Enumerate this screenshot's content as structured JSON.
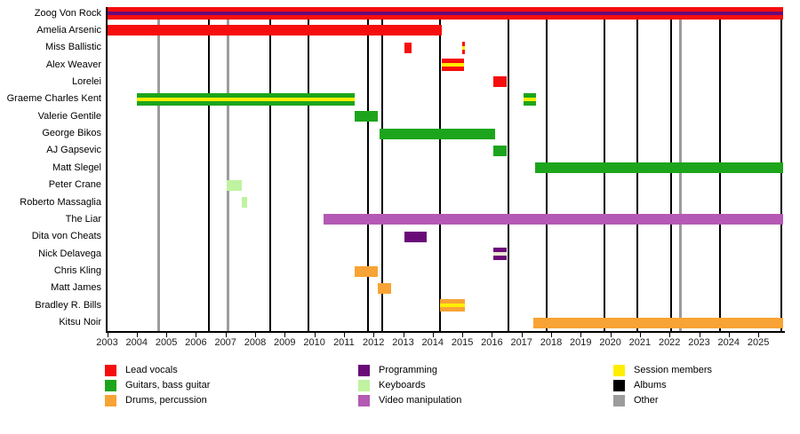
{
  "chart_data": {
    "type": "timeline-gantt",
    "title": "",
    "x_axis": {
      "start": 2003,
      "end": 2025.85,
      "ticks": [
        2003,
        2004,
        2005,
        2006,
        2007,
        2008,
        2009,
        2010,
        2011,
        2012,
        2013,
        2014,
        2015,
        2016,
        2017,
        2018,
        2019,
        2020,
        2021,
        2022,
        2023,
        2024,
        2025
      ]
    },
    "colors": {
      "lead_vocals": "#f60d0d",
      "guitars": "#1ca51c",
      "drums": "#f8a335",
      "programming": "#6a0a78",
      "keyboards": "#bff3a0",
      "keyboards_light": "#eae6d4",
      "video": "#b459b4",
      "session": "#ffee00",
      "albums": "#000000",
      "other": "#9c9c9c"
    },
    "members": [
      {
        "name": "Zoog Von Rock",
        "bars": [
          {
            "start": 2003.0,
            "end": 2025.85,
            "color": "lead_vocals",
            "stripe": "programming"
          }
        ]
      },
      {
        "name": "Amelia Arsenic",
        "bars": [
          {
            "start": 2003.0,
            "end": 2014.3,
            "color": "lead_vocals"
          }
        ]
      },
      {
        "name": "Miss Ballistic",
        "bars": [
          {
            "start": 2013.05,
            "end": 2013.3,
            "color": "lead_vocals"
          },
          {
            "start": 2015.0,
            "end": 2015.1,
            "color": "lead_vocals",
            "stripe": "session"
          }
        ]
      },
      {
        "name": "Alex Weaver",
        "bars": [
          {
            "start": 2014.3,
            "end": 2015.05,
            "color": "lead_vocals",
            "stripe": "session"
          }
        ]
      },
      {
        "name": "Lorelei",
        "bars": [
          {
            "start": 2016.05,
            "end": 2016.5,
            "color": "lead_vocals"
          }
        ]
      },
      {
        "name": "Graeme Charles Kent",
        "bars": [
          {
            "start": 2004.0,
            "end": 2011.35,
            "color": "guitars",
            "stripe": "session"
          },
          {
            "start": 2017.08,
            "end": 2017.5,
            "color": "guitars",
            "stripe": "session"
          }
        ]
      },
      {
        "name": "Valerie Gentile",
        "bars": [
          {
            "start": 2011.35,
            "end": 2012.15,
            "color": "guitars"
          }
        ]
      },
      {
        "name": "George Bikos",
        "bars": [
          {
            "start": 2012.2,
            "end": 2016.1,
            "color": "guitars"
          }
        ]
      },
      {
        "name": "AJ Gapsevic",
        "bars": [
          {
            "start": 2016.05,
            "end": 2016.5,
            "color": "guitars"
          }
        ]
      },
      {
        "name": "Matt Slegel",
        "bars": [
          {
            "start": 2017.45,
            "end": 2025.85,
            "color": "guitars"
          }
        ]
      },
      {
        "name": "Peter Crane",
        "bars": [
          {
            "start": 2007.05,
            "end": 2007.55,
            "color": "keyboards"
          }
        ]
      },
      {
        "name": "Roberto Massaglia",
        "bars": [
          {
            "start": 2007.55,
            "end": 2007.72,
            "color": "keyboards"
          }
        ]
      },
      {
        "name": "The Liar",
        "bars": [
          {
            "start": 2010.3,
            "end": 2025.85,
            "color": "video"
          }
        ]
      },
      {
        "name": "Dita von Cheats",
        "bars": [
          {
            "start": 2013.05,
            "end": 2013.8,
            "color": "programming"
          }
        ]
      },
      {
        "name": "Nick Delavega",
        "bars": [
          {
            "start": 2016.05,
            "end": 2016.5,
            "color": "programming",
            "stripe": "keyboards_light"
          }
        ]
      },
      {
        "name": "Chris Kling",
        "bars": [
          {
            "start": 2011.35,
            "end": 2012.15,
            "color": "drums"
          }
        ]
      },
      {
        "name": "Matt James",
        "bars": [
          {
            "start": 2012.15,
            "end": 2012.6,
            "color": "drums"
          }
        ]
      },
      {
        "name": "Bradley R. Bills",
        "bars": [
          {
            "start": 2014.25,
            "end": 2015.1,
            "color": "drums",
            "stripe": "session"
          }
        ]
      },
      {
        "name": "Kitsu Noir",
        "bars": [
          {
            "start": 2017.4,
            "end": 2025.85,
            "color": "drums"
          }
        ]
      }
    ],
    "event_lines": {
      "albums": [
        2006.45,
        2008.5,
        2009.8,
        2011.8,
        2012.3,
        2014.25,
        2016.55,
        2017.85,
        2019.8,
        2020.9,
        2022.05,
        2023.7,
        2025.78
      ],
      "other": [
        2004.73,
        2007.08,
        2022.38
      ]
    },
    "legend": {
      "position": "bottom",
      "items": [
        {
          "label": "Lead vocals",
          "color": "lead_vocals"
        },
        {
          "label": "Guitars, bass guitar",
          "color": "guitars"
        },
        {
          "label": "Drums, percussion",
          "color": "drums"
        },
        {
          "label": "Programming",
          "color": "programming"
        },
        {
          "label": "Keyboards",
          "color": "keyboards"
        },
        {
          "label": "Video manipulation",
          "color": "video"
        },
        {
          "label": "Session members",
          "color": "session"
        },
        {
          "label": "Albums",
          "color": "albums"
        },
        {
          "label": "Other",
          "color": "other"
        }
      ]
    }
  }
}
